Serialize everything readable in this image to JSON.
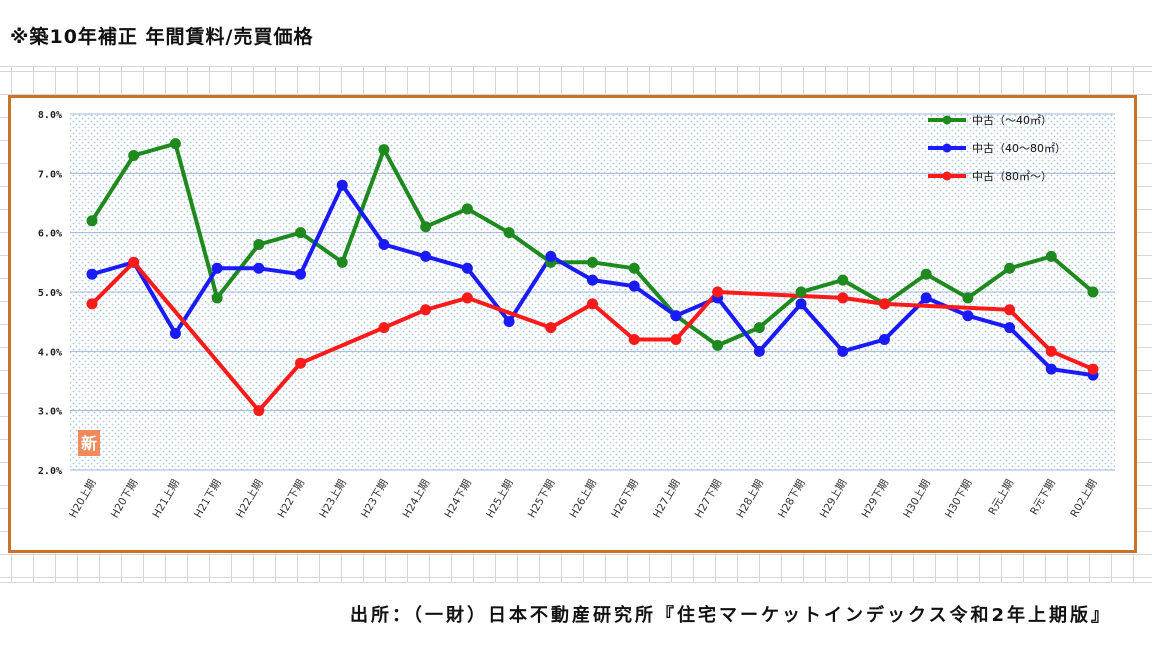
{
  "header": {
    "title": "※築10年補正 年間賃料/売買価格"
  },
  "footer": {
    "source": "出所：（一財）日本不動産研究所『住宅マーケットインデックス令和2年上期版』"
  },
  "badge": {
    "text": "新",
    "color": "#f08a5d"
  },
  "frame_color": "#c9722a",
  "chart_data": {
    "type": "line",
    "categories": [
      "H20上期",
      "H20下期",
      "H21上期",
      "H21下期",
      "H22上期",
      "H22下期",
      "H23上期",
      "H23下期",
      "H24上期",
      "H24下期",
      "H25上期",
      "H25下期",
      "H26上期",
      "H26下期",
      "H27上期",
      "H27下期",
      "H28上期",
      "H28下期",
      "H29上期",
      "H29下期",
      "H30上期",
      "H30下期",
      "R元上期",
      "R元下期",
      "R02上期"
    ],
    "y_ticks": [
      "2.0%",
      "3.0%",
      "4.0%",
      "5.0%",
      "6.0%",
      "7.0%",
      "8.0%"
    ],
    "ylim": [
      2.0,
      8.0
    ],
    "legend_position": "top-right",
    "grid": true,
    "series": [
      {
        "name": "中古（～40㎡）",
        "color": "#1e8a1e",
        "values": [
          6.2,
          7.3,
          7.5,
          4.9,
          5.8,
          6.0,
          5.5,
          7.4,
          6.1,
          6.4,
          6.0,
          5.5,
          5.5,
          5.4,
          4.6,
          4.1,
          4.4,
          5.0,
          5.2,
          4.8,
          5.3,
          4.9,
          5.4,
          5.6,
          5.0
        ]
      },
      {
        "name": "中古（40～80㎡）",
        "color": "#1a1aff",
        "values": [
          5.3,
          5.5,
          4.3,
          5.4,
          5.4,
          5.3,
          6.8,
          5.8,
          5.6,
          5.4,
          4.5,
          5.6,
          5.2,
          5.1,
          4.6,
          4.9,
          4.0,
          4.8,
          4.0,
          4.2,
          4.9,
          4.6,
          4.4,
          3.7,
          3.6
        ]
      },
      {
        "name": "中古（80㎡～）",
        "color": "#ff1a1a",
        "values": [
          4.8,
          5.5,
          null,
          null,
          3.0,
          3.8,
          null,
          4.4,
          4.7,
          4.9,
          null,
          4.4,
          4.8,
          4.2,
          4.2,
          5.0,
          null,
          null,
          4.9,
          4.8,
          null,
          null,
          4.7,
          4.0,
          3.7
        ]
      }
    ]
  }
}
